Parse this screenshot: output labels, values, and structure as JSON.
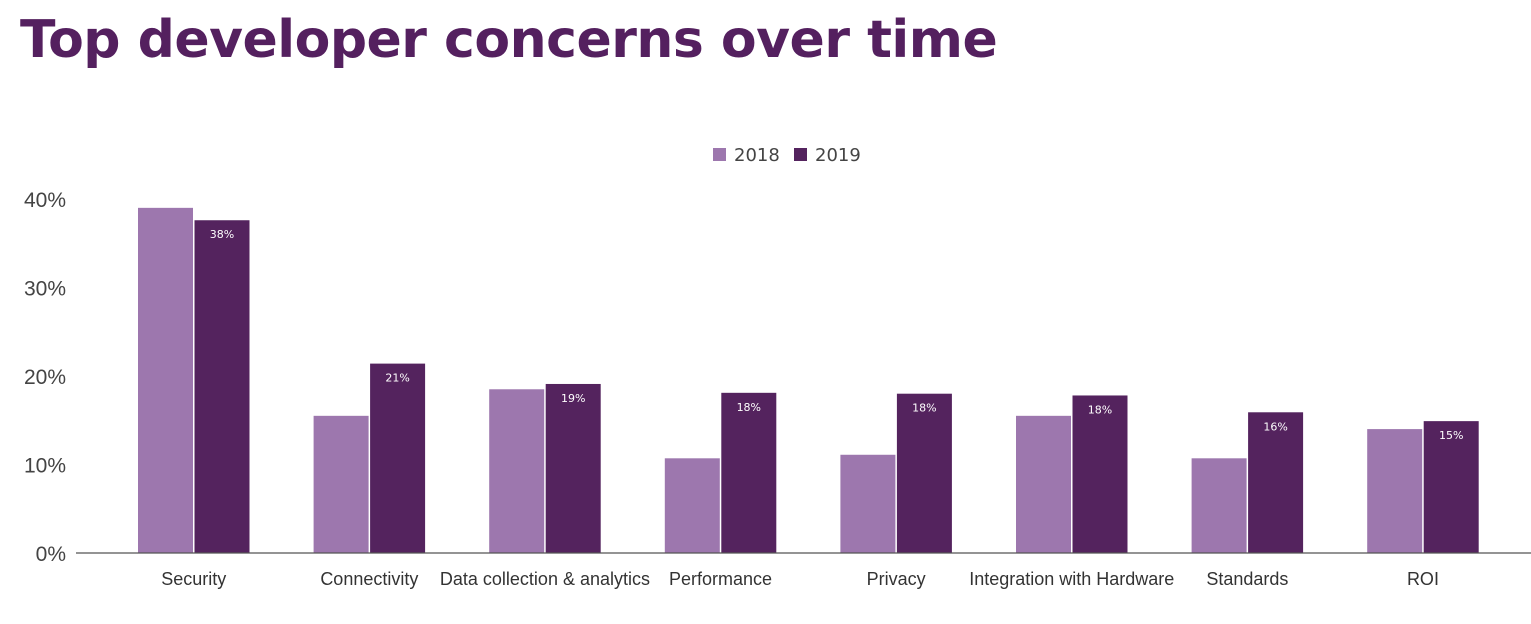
{
  "chart_data": {
    "type": "bar",
    "title": "Top developer concerns over time",
    "categories": [
      "Security",
      "Connectivity",
      "Data collection & analytics",
      "Performance",
      "Privacy",
      "Integration with Hardware",
      "Standards",
      "ROI"
    ],
    "series": [
      {
        "name": "2018",
        "color": "#9d77ae",
        "values": [
          39,
          15.5,
          18.5,
          10.7,
          11.1,
          15.5,
          10.7,
          14
        ],
        "data_labels": [
          "",
          "",
          "",
          "",
          "",
          "",
          "",
          ""
        ]
      },
      {
        "name": "2019",
        "color": "#54235e",
        "values": [
          37.6,
          21.4,
          19.1,
          18.1,
          18,
          17.8,
          15.9,
          14.9
        ],
        "data_labels": [
          "38%",
          "21%",
          "19%",
          "18%",
          "18%",
          "18%",
          "16%",
          "15%"
        ]
      }
    ],
    "yticks": [
      "0%",
      "10%",
      "20%",
      "30%",
      "40%"
    ],
    "ytick_values": [
      0,
      10,
      20,
      30,
      40
    ],
    "ylim": [
      0,
      40
    ],
    "xlabel": "",
    "ylabel": "",
    "legend_position": "top-center",
    "grid": false
  }
}
